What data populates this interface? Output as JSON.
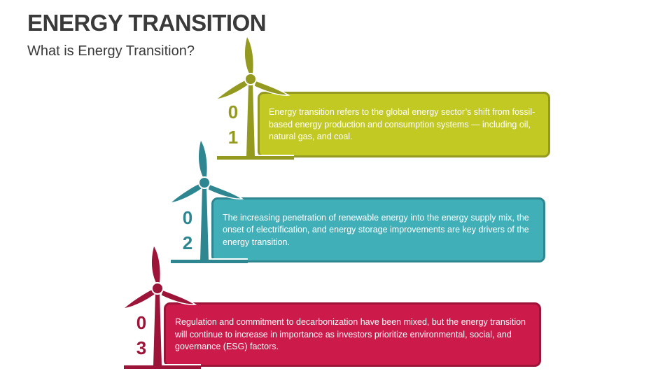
{
  "header": {
    "title": "ENERGY TRANSITION",
    "subtitle": "What is Energy Transition?"
  },
  "items": [
    {
      "digit1": "0",
      "digit2": "1",
      "text": "Energy transition refers to the global energy sector’s shift from fossil-based energy production and consumption systems — including oil, natural gas, and coal.",
      "color": "#c2c923",
      "dark": "#939a1f",
      "icon": "wind-turbine-icon"
    },
    {
      "digit1": "0",
      "digit2": "2",
      "text": "The increasing penetration of renewable energy into the energy supply mix, the onset of electrification, and energy storage improvements are key drivers of the energy transition.",
      "color": "#41afb8",
      "dark": "#2e8790",
      "icon": "wind-turbine-icon"
    },
    {
      "digit1": "0",
      "digit2": "3",
      "text": "Regulation and commitment to decarbonization have been mixed, but the energy transition will continue to increase in importance as investors prioritize environmental, social, and governance (ESG) factors.",
      "color": "#cc1b4b",
      "dark": "#9c1438",
      "icon": "wind-turbine-icon"
    }
  ]
}
